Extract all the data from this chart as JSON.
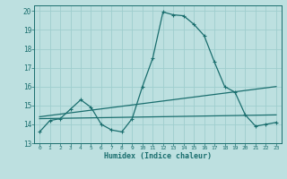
{
  "title": "",
  "xlabel": "Humidex (Indice chaleur)",
  "ylabel": "",
  "bg_color": "#bde0e0",
  "grid_color": "#9ecece",
  "line_color": "#1a6e6e",
  "xlim": [
    -0.5,
    23.5
  ],
  "ylim": [
    13,
    20.3
  ],
  "yticks": [
    13,
    14,
    15,
    16,
    17,
    18,
    19,
    20
  ],
  "xticks": [
    0,
    1,
    2,
    3,
    4,
    5,
    6,
    7,
    8,
    9,
    10,
    11,
    12,
    13,
    14,
    15,
    16,
    17,
    18,
    19,
    20,
    21,
    22,
    23
  ],
  "main_x": [
    0,
    1,
    2,
    3,
    4,
    5,
    6,
    7,
    8,
    9,
    10,
    11,
    12,
    13,
    14,
    15,
    16,
    17,
    18,
    19,
    20,
    21,
    22,
    23
  ],
  "main_y": [
    13.6,
    14.2,
    14.3,
    14.8,
    15.3,
    14.9,
    14.0,
    13.7,
    13.6,
    14.3,
    16.0,
    17.5,
    19.95,
    19.8,
    19.75,
    19.3,
    18.7,
    17.3,
    16.0,
    15.7,
    14.5,
    13.9,
    14.0,
    14.1
  ],
  "line1_x": [
    0,
    23
  ],
  "line1_y": [
    14.4,
    16.0
  ],
  "line2_x": [
    0,
    23
  ],
  "line2_y": [
    14.3,
    14.5
  ]
}
